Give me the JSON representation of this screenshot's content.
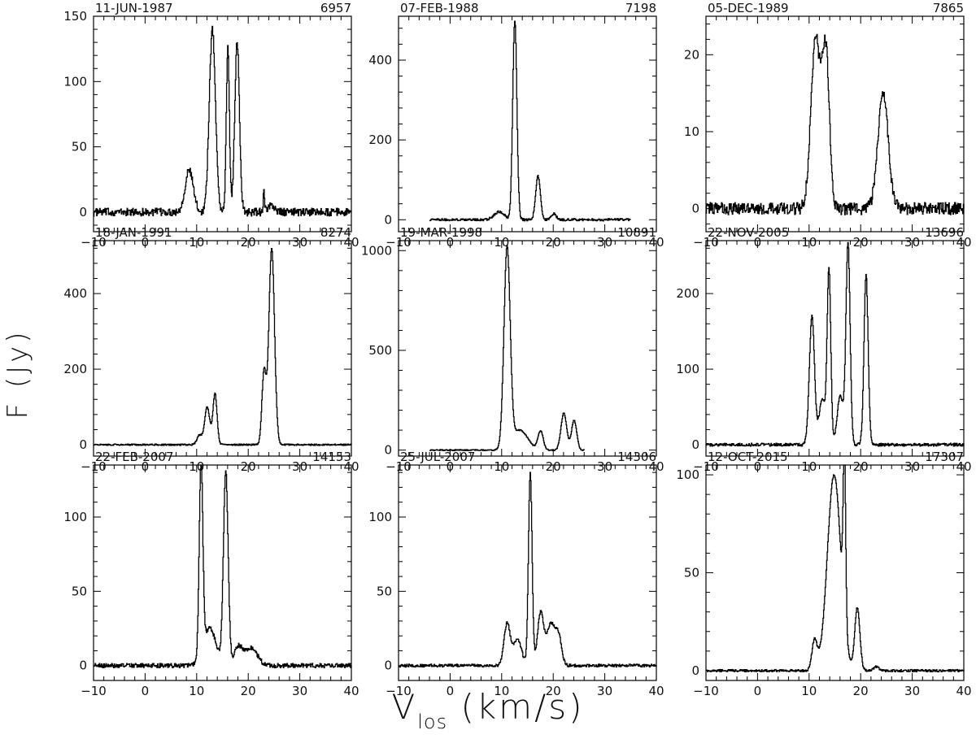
{
  "figure": {
    "ylabel": "F (Jy)",
    "xlabel_main": "V",
    "xlabel_sub": "los",
    "xlabel_unit": "(km/s)",
    "xlim": [
      -10,
      40
    ],
    "xticks": [
      "−10",
      "0",
      "10",
      "20",
      "30",
      "40"
    ]
  },
  "chart_data": [
    {
      "type": "line",
      "date": "11-JUN-1987",
      "id": "6957",
      "xlim": [
        -10,
        40
      ],
      "ylim": [
        -15,
        150
      ],
      "yticks": [
        0,
        50,
        100,
        150
      ],
      "noise": 3,
      "peaks": [
        [
          8.5,
          32,
          0.8
        ],
        [
          13.0,
          140,
          0.6
        ],
        [
          16.0,
          125,
          0.3
        ],
        [
          17.8,
          130,
          0.45
        ],
        [
          23.0,
          15,
          0.15
        ],
        [
          24.5,
          5,
          0.6
        ]
      ],
      "data_range": [
        -10,
        40
      ]
    },
    {
      "type": "line",
      "date": "07-FEB-1988",
      "id": "7198",
      "xlim": [
        -10,
        40
      ],
      "ylim": [
        -30,
        510
      ],
      "yticks": [
        0,
        200,
        400
      ],
      "noise": 3,
      "peaks": [
        [
          9.5,
          20,
          1.0
        ],
        [
          12.5,
          500,
          0.4
        ],
        [
          17.0,
          110,
          0.45
        ],
        [
          20.0,
          15,
          0.5
        ]
      ],
      "data_range": [
        -4,
        35
      ]
    },
    {
      "type": "line",
      "date": "05-DEC-1989",
      "id": "7865",
      "xlim": [
        -10,
        40
      ],
      "ylim": [
        -3,
        25
      ],
      "yticks": [
        0,
        10,
        20
      ],
      "noise": 0.8,
      "peaks": [
        [
          11.2,
          22,
          0.9
        ],
        [
          13.2,
          20,
          0.7
        ],
        [
          24.3,
          15,
          1.0
        ]
      ],
      "data_range": [
        -10,
        40
      ]
    },
    {
      "type": "line",
      "date": "18-JAN-1991",
      "id": "8274",
      "xlim": [
        -10,
        40
      ],
      "ylim": [
        -30,
        540
      ],
      "yticks": [
        0,
        200,
        400
      ],
      "noise": 2,
      "peaks": [
        [
          10.5,
          25,
          0.5
        ],
        [
          12.0,
          100,
          0.5
        ],
        [
          13.5,
          135,
          0.4
        ],
        [
          23.0,
          190,
          0.4
        ],
        [
          24.5,
          520,
          0.55
        ]
      ],
      "data_range": [
        -10,
        40
      ]
    },
    {
      "type": "line",
      "date": "19-MAR-1998",
      "id": "10891",
      "xlim": [
        -10,
        40
      ],
      "ylim": [
        -30,
        1050
      ],
      "yticks": [
        0,
        500,
        1000
      ],
      "noise": 3,
      "peaks": [
        [
          11.0,
          1000,
          0.6
        ],
        [
          13.5,
          100,
          1.5
        ],
        [
          17.5,
          95,
          0.5
        ],
        [
          22.0,
          185,
          0.55
        ],
        [
          24.0,
          150,
          0.5
        ]
      ],
      "data_range": [
        -4,
        26
      ]
    },
    {
      "type": "line",
      "date": "22-NOV-2005",
      "id": "13696",
      "xlim": [
        -10,
        40
      ],
      "ylim": [
        -15,
        270
      ],
      "yticks": [
        0,
        100,
        200
      ],
      "noise": 2,
      "peaks": [
        [
          10.5,
          170,
          0.5
        ],
        [
          12.5,
          60,
          0.6
        ],
        [
          13.8,
          230,
          0.35
        ],
        [
          16.0,
          65,
          0.6
        ],
        [
          17.5,
          265,
          0.4
        ],
        [
          21.0,
          225,
          0.4
        ]
      ],
      "data_range": [
        -10,
        40
      ]
    },
    {
      "type": "line",
      "date": "22-FEB-2007",
      "id": "14153",
      "xlim": [
        -10,
        40
      ],
      "ylim": [
        -10,
        135
      ],
      "yticks": [
        0,
        50,
        100
      ],
      "noise": 1.5,
      "peaks": [
        [
          10.8,
          130,
          0.35
        ],
        [
          12.5,
          25,
          1.2
        ],
        [
          15.6,
          130,
          0.45
        ],
        [
          18.0,
          12,
          0.8
        ],
        [
          20.5,
          12,
          1.2
        ]
      ],
      "data_range": [
        -10,
        40
      ]
    },
    {
      "type": "line",
      "date": "25-JUL-2007",
      "id": "14306",
      "xlim": [
        -10,
        40
      ],
      "ylim": [
        -10,
        135
      ],
      "yticks": [
        0,
        50,
        100
      ],
      "noise": 1,
      "peaks": [
        [
          11.0,
          28,
          0.6
        ],
        [
          13.0,
          18,
          0.8
        ],
        [
          15.5,
          130,
          0.35
        ],
        [
          17.5,
          35,
          0.6
        ],
        [
          19.5,
          28,
          0.8
        ],
        [
          21.0,
          18,
          0.6
        ]
      ],
      "data_range": [
        -10,
        40
      ]
    },
    {
      "type": "line",
      "date": "12-OCT-2015",
      "id": "17307",
      "xlim": [
        -10,
        40
      ],
      "ylim": [
        -5,
        105
      ],
      "yticks": [
        0,
        50,
        100
      ],
      "noise": 0.6,
      "peaks": [
        [
          11.0,
          15,
          0.5
        ],
        [
          14.8,
          100,
          1.3
        ],
        [
          16.8,
          85,
          0.25
        ],
        [
          19.3,
          32,
          0.5
        ],
        [
          23.0,
          2,
          0.5
        ]
      ],
      "data_range": [
        -10,
        40
      ]
    }
  ]
}
